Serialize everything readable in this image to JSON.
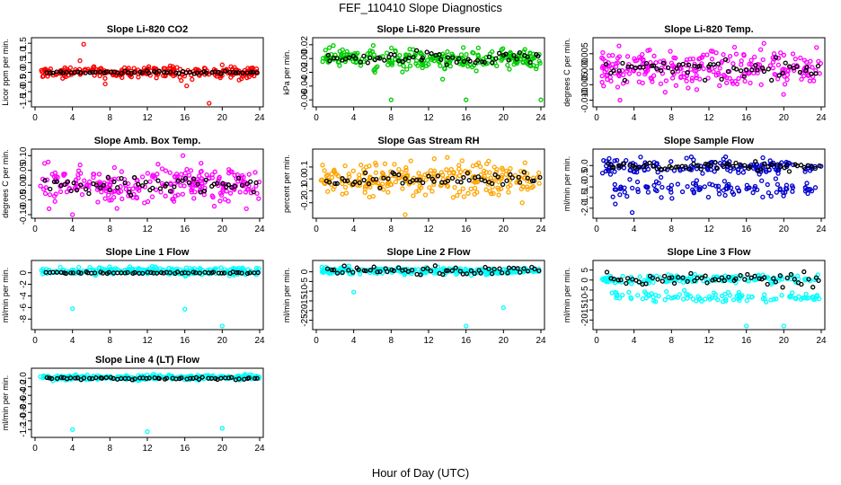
{
  "figure": {
    "title": "FEF_110410  Slope Diagnostics",
    "xlabel": "Hour of Day (UTC)"
  },
  "chart_data": [
    {
      "type": "scatter",
      "title": "Slope Li-820 CO2",
      "ylabel": "Licor ppm per min.",
      "color": "#ff0000",
      "xlim": [
        0,
        24
      ],
      "xticks": [
        0,
        4,
        8,
        12,
        16,
        20,
        24
      ],
      "ylim": [
        -1.6,
        1.6
      ],
      "yticks": [
        -1.5,
        -1.0,
        -0.5,
        0.0,
        0.5,
        1.0,
        1.5
      ],
      "ytick_labels": [
        "-1.5",
        "-1.0",
        "-0.5",
        "0.0",
        "0.5",
        "1.0",
        "1.5"
      ],
      "band": {
        "center": 0.0,
        "spread": 0.2,
        "outliers": [
          [
            5.2,
            1.45
          ],
          [
            4.8,
            0.6
          ],
          [
            7.5,
            -0.6
          ],
          [
            16.2,
            -0.7
          ],
          [
            18.6,
            -1.6
          ],
          [
            21.8,
            -0.4
          ]
        ]
      },
      "black_series": {
        "center": 0.0,
        "spread": 0.05
      }
    },
    {
      "type": "scatter",
      "title": "Slope Li-820 Pressure",
      "ylabel": "kPa per min.",
      "color": "#00cc00",
      "xlim": [
        0,
        24
      ],
      "xticks": [
        0,
        4,
        8,
        12,
        16,
        20,
        24
      ],
      "ylim": [
        -0.065,
        0.025
      ],
      "yticks": [
        -0.06,
        -0.04,
        -0.02,
        0.0,
        0.02
      ],
      "ytick_labels": [
        "-0.06",
        "-0.04",
        "-0.02",
        "0.00",
        "0.02"
      ],
      "band": {
        "center": 0.0,
        "spread": 0.01,
        "outliers": [
          [
            8.0,
            -0.06
          ],
          [
            16.0,
            -0.06
          ],
          [
            24.0,
            -0.06
          ],
          [
            13.5,
            -0.03
          ]
        ]
      },
      "black_series": {
        "center": 0.0,
        "spread": 0.006
      }
    },
    {
      "type": "scatter",
      "title": "Slope Li-820 Temp.",
      "ylabel": "degrees C per min.",
      "color": "#ff00ff",
      "xlim": [
        0,
        24
      ],
      "xticks": [
        0,
        4,
        8,
        12,
        16,
        20,
        24
      ],
      "ylim": [
        -0.011,
        0.009
      ],
      "yticks": [
        -0.01,
        -0.005,
        0.0,
        0.005
      ],
      "ytick_labels": [
        "-0.010",
        "-0.005",
        "0.000",
        "0.005"
      ],
      "band": {
        "center": 0.0,
        "spread": 0.0045,
        "outliers": [
          [
            2.5,
            -0.01
          ],
          [
            23.5,
            0.007
          ]
        ]
      },
      "black_series": {
        "center": 0.0,
        "spread": 0.002
      }
    },
    {
      "type": "scatter",
      "title": "Slope Amb. Box Temp.",
      "ylabel": "degrees C per min.",
      "color": "#ff00ff",
      "xlim": [
        0,
        24
      ],
      "xticks": [
        0,
        4,
        8,
        12,
        16,
        20,
        24
      ],
      "ylim": [
        -0.1,
        0.11
      ],
      "yticks": [
        -0.1,
        -0.05,
        0.0,
        0.05,
        0.1
      ],
      "ytick_labels": [
        "-0.10",
        "-0.05",
        "0.00",
        "0.05",
        "0.10"
      ],
      "band": {
        "center": 0.0,
        "spread": 0.045,
        "outliers": [
          [
            1.5,
            -0.08
          ],
          [
            15.8,
            0.1
          ],
          [
            4.0,
            -0.1
          ]
        ]
      },
      "black_series": {
        "center": 0.0,
        "spread": 0.02
      }
    },
    {
      "type": "scatter",
      "title": "Slope Gas Stream RH",
      "ylabel": "percent per min.",
      "color": "#ffa500",
      "xlim": [
        0,
        24
      ],
      "xticks": [
        0,
        4,
        8,
        12,
        16,
        20,
        24
      ],
      "ylim": [
        -0.3,
        0.22
      ],
      "yticks": [
        -0.2,
        -0.1,
        0.0,
        0.1
      ],
      "ytick_labels": [
        "-0.2",
        "-0.1",
        "0.0",
        "0.1"
      ],
      "band": {
        "center": 0.0,
        "spread": 0.09,
        "outliers": [
          [
            9.5,
            -0.3
          ],
          [
            22.0,
            -0.2
          ],
          [
            14.0,
            0.18
          ]
        ]
      },
      "black_series": {
        "center": 0.0,
        "spread": 0.04
      }
    },
    {
      "type": "scatter",
      "title": "Slope Sample Flow",
      "ylabel": "ml/min per min.",
      "color": "#0000cc",
      "xlim": [
        0,
        24
      ],
      "xticks": [
        0,
        4,
        8,
        12,
        16,
        20,
        24
      ],
      "ylim": [
        -2.3,
        0.6
      ],
      "yticks": [
        -2.0,
        -1.5,
        -1.0,
        -0.5,
        0.0
      ],
      "ytick_labels": [
        "-2.0",
        "-1.5",
        "-1.0",
        "-0.5",
        "0.0"
      ],
      "band": {
        "center": -0.05,
        "spread": 0.25,
        "center2": -1.1,
        "spread2": 0.3,
        "outliers": [
          [
            3.8,
            -2.2
          ],
          [
            2.0,
            -1.8
          ]
        ]
      },
      "black_series": {
        "center": -0.05,
        "spread": 0.15
      }
    },
    {
      "type": "scatter",
      "title": "Slope Line 1 Flow",
      "ylabel": "ml/min per min.",
      "color": "#00ffff",
      "xlim": [
        0,
        24
      ],
      "xticks": [
        0,
        4,
        8,
        12,
        16,
        20,
        24
      ],
      "ylim": [
        -9.2,
        1.5
      ],
      "yticks": [
        -8,
        -6,
        -4,
        -2,
        0
      ],
      "ytick_labels": [
        "-8",
        "-6",
        "-4",
        "-2",
        "0"
      ],
      "band": {
        "center": 0.3,
        "spread": 0.45,
        "outliers": [
          [
            4.0,
            -6.2
          ],
          [
            16.0,
            -6.3
          ],
          [
            20.0,
            -9.2
          ]
        ]
      },
      "black_series": {
        "center": 0.0,
        "spread": 0.1
      }
    },
    {
      "type": "scatter",
      "title": "Slope Line 2 Flow",
      "ylabel": "ml/min per min.",
      "color": "#00ffff",
      "xlim": [
        0,
        24
      ],
      "xticks": [
        0,
        4,
        8,
        12,
        16,
        20,
        24
      ],
      "ylim": [
        -28,
        4
      ],
      "yticks": [
        -25,
        -20,
        -15,
        -10,
        -5,
        0
      ],
      "ytick_labels": [
        "-25",
        "-20",
        "-15",
        "-10",
        "-5",
        "0"
      ],
      "band": {
        "center": 0.5,
        "spread": 1.2,
        "outliers": [
          [
            4.0,
            -10.5
          ],
          [
            16.0,
            -28
          ],
          [
            20.0,
            -18.5
          ]
        ]
      },
      "black_series": {
        "center": 0.5,
        "spread": 1.5
      }
    },
    {
      "type": "scatter",
      "title": "Slope Line 3 Flow",
      "ylabel": "ml/min per min.",
      "color": "#00ffff",
      "xlim": [
        0,
        24
      ],
      "xticks": [
        0,
        4,
        8,
        12,
        16,
        20,
        24
      ],
      "ylim": [
        -23,
        8
      ],
      "yticks": [
        -20,
        -15,
        -10,
        -5,
        0,
        5
      ],
      "ytick_labels": [
        "-20",
        "-15",
        "-10",
        "-5",
        "0",
        "5"
      ],
      "band": {
        "center": 0.5,
        "spread": 1.5,
        "center2": -8.5,
        "spread2": 1.8,
        "outliers": [
          [
            16.0,
            -23
          ],
          [
            20.0,
            -23
          ]
        ]
      },
      "black_series": {
        "center": 0.5,
        "spread": 2.2
      }
    },
    {
      "type": "scatter",
      "title": "Slope Line 4 (LT) Flow",
      "ylabel": "ml/min per min.",
      "color": "#00ffff",
      "xlim": [
        0,
        24
      ],
      "xticks": [
        0,
        4,
        8,
        12,
        16,
        20,
        24
      ],
      "ylim": [
        -1.3,
        0.15
      ],
      "yticks": [
        -1.2,
        -1.0,
        -0.8,
        -0.6,
        -0.4,
        -0.2,
        0.0
      ],
      "ytick_labels": [
        "-1.2",
        "-1.0",
        "-0.8",
        "-0.6",
        "-0.4",
        "-0.2",
        "0.0"
      ],
      "band": {
        "center": 0.02,
        "spread": 0.04,
        "outliers": [
          [
            4.0,
            -1.2
          ],
          [
            12.0,
            -1.25
          ],
          [
            20.0,
            -1.17
          ]
        ]
      },
      "black_series": {
        "center": 0.0,
        "spread": 0.02
      }
    }
  ]
}
